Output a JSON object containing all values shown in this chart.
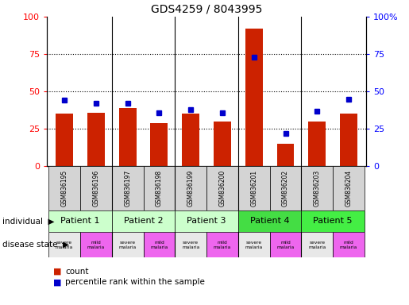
{
  "title": "GDS4259 / 8043995",
  "samples": [
    "GSM836195",
    "GSM836196",
    "GSM836197",
    "GSM836198",
    "GSM836199",
    "GSM836200",
    "GSM836201",
    "GSM836202",
    "GSM836203",
    "GSM836204"
  ],
  "counts": [
    35,
    36,
    39,
    29,
    35,
    30,
    92,
    15,
    30,
    35
  ],
  "percentiles": [
    44,
    42,
    42,
    36,
    38,
    36,
    73,
    22,
    37,
    45
  ],
  "patients": [
    {
      "label": "Patient 1",
      "start": 0,
      "end": 2,
      "color": "#ccffcc"
    },
    {
      "label": "Patient 2",
      "start": 2,
      "end": 4,
      "color": "#ccffcc"
    },
    {
      "label": "Patient 3",
      "start": 4,
      "end": 6,
      "color": "#ccffcc"
    },
    {
      "label": "Patient 4",
      "start": 6,
      "end": 8,
      "color": "#44dd44"
    },
    {
      "label": "Patient 5",
      "start": 8,
      "end": 10,
      "color": "#44ee44"
    }
  ],
  "disease_states": [
    {
      "label": "severe\nmalaria",
      "type": "severe",
      "sample_idx": 0
    },
    {
      "label": "mild\nmalaria",
      "type": "mild",
      "sample_idx": 1
    },
    {
      "label": "severe\nmalaria",
      "type": "severe",
      "sample_idx": 2
    },
    {
      "label": "mild\nmalaria",
      "type": "mild",
      "sample_idx": 3
    },
    {
      "label": "severe\nmalaria",
      "type": "severe",
      "sample_idx": 4
    },
    {
      "label": "mild\nmalaria",
      "type": "mild",
      "sample_idx": 5
    },
    {
      "label": "severe\nmalaria",
      "type": "severe",
      "sample_idx": 6
    },
    {
      "label": "mild\nmalaria",
      "type": "mild",
      "sample_idx": 7
    },
    {
      "label": "severe\nmalaria",
      "type": "severe",
      "sample_idx": 8
    },
    {
      "label": "mild\nmalaria",
      "type": "mild",
      "sample_idx": 9
    }
  ],
  "bar_color": "#cc2200",
  "dot_color": "#0000cc",
  "severe_color": "#e8e8e8",
  "mild_color": "#ee66ee",
  "ylim_left": [
    0,
    100
  ],
  "ylim_right": [
    0,
    100
  ],
  "grid_values": [
    25,
    50,
    75
  ],
  "legend_count_label": "count",
  "legend_pct_label": "percentile rank within the sample",
  "individual_label": "individual",
  "disease_label": "disease state"
}
